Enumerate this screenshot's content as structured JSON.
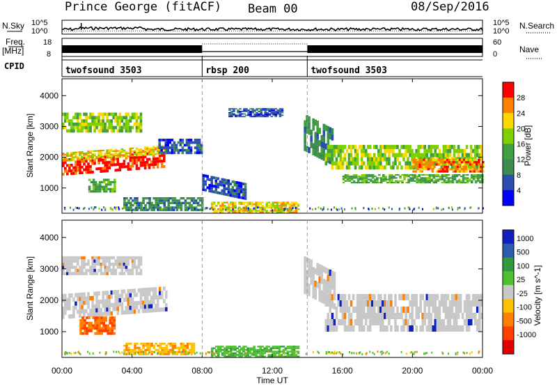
{
  "header": {
    "station": "Prince George (fitACF)",
    "beam": "Beam 00",
    "date": "08/Sep/2016"
  },
  "left_labels": {
    "nsky": "N.Sky",
    "freq_top": "Freq.",
    "freq_unit": "[MHz]",
    "cpid": "CPID"
  },
  "right_labels": {
    "nsearch": "N.Search",
    "nave": "Nave"
  },
  "noise_panel": {
    "left_ticks": [
      "10^5",
      "10^0"
    ],
    "right_ticks": [
      "10^5",
      "10^0"
    ]
  },
  "freq_panel": {
    "left_ticks": [
      "18",
      "8"
    ],
    "right_ticks": [
      "60",
      "0"
    ]
  },
  "cpid_segments": [
    {
      "name": "twofsound",
      "id": "3503",
      "start_hour": 0
    },
    {
      "name": "rbsp",
      "id": "200",
      "start_hour": 8
    },
    {
      "name": "twofsound",
      "id": "3503",
      "start_hour": 14
    }
  ],
  "colors": {
    "power": [
      "#0000ff",
      "#2a4fb0",
      "#3c8c50",
      "#40a040",
      "#80d000",
      "#ffd700",
      "#ff8000",
      "#ff0000"
    ],
    "velocity_pos": [
      "#1020c0",
      "#2a5cb0",
      "#2f9a40",
      "#50c030"
    ],
    "velocity_ground": "#c8c8c8",
    "velocity_neg": [
      "#ffc000",
      "#ff8000",
      "#ff4000",
      "#e00000"
    ]
  },
  "chart_data": [
    {
      "type": "heatmap",
      "name": "power",
      "ylabel": "Slant Range [km]",
      "yticks": [
        "4000",
        "3000",
        "2000",
        "1000"
      ],
      "ylim": [
        180,
        4550
      ],
      "xlim": [
        0,
        24
      ],
      "colorbar_label": "Power [dB]",
      "colorbar_ticks": [
        "28",
        "24",
        "20",
        "16",
        "12",
        "8",
        "4"
      ],
      "regions": [
        {
          "t0": 0.0,
          "t1": 5.8,
          "r0": 1400,
          "r1": 1950,
          "level": 7,
          "slope": 250
        },
        {
          "t0": 0.0,
          "t1": 6.0,
          "r0": 1850,
          "r1": 2150,
          "level": 5,
          "slope": 250
        },
        {
          "t0": 0.0,
          "t1": 4.5,
          "r0": 2800,
          "r1": 3450,
          "level": 4,
          "slope": 0
        },
        {
          "t0": 1.5,
          "t1": 3.0,
          "r0": 850,
          "r1": 1300,
          "level": 3,
          "slope": 0
        },
        {
          "t0": 3.5,
          "t1": 8.0,
          "r0": 250,
          "r1": 700,
          "level": 2,
          "slope": 0
        },
        {
          "t0": 5.5,
          "t1": 8.0,
          "r0": 2100,
          "r1": 2600,
          "level": 1,
          "slope": 0
        },
        {
          "t0": 8.0,
          "t1": 10.5,
          "r0": 900,
          "r1": 1450,
          "level": 1,
          "slope": -300
        },
        {
          "t0": 8.5,
          "t1": 13.5,
          "r0": 180,
          "r1": 500,
          "level": 5,
          "slope": 0
        },
        {
          "t0": 9.5,
          "t1": 12.5,
          "r0": 3300,
          "r1": 3550,
          "level": 1,
          "slope": 0
        },
        {
          "t0": 13.8,
          "t1": 15.5,
          "r0": 2200,
          "r1": 3400,
          "level": 2,
          "slope": -500
        },
        {
          "t0": 15.0,
          "t1": 24.0,
          "r0": 1600,
          "r1": 2400,
          "level": 4,
          "slope": 0
        },
        {
          "t0": 16.0,
          "t1": 24.0,
          "r0": 1150,
          "r1": 1450,
          "level": 3,
          "slope": 0
        },
        {
          "t0": 20.0,
          "t1": 24.0,
          "r0": 1500,
          "r1": 1950,
          "level": 6,
          "slope": 0
        }
      ]
    },
    {
      "type": "heatmap",
      "name": "velocity",
      "ylabel": "Slant Range [km]",
      "yticks": [
        "4000",
        "3000",
        "2000",
        "1000"
      ],
      "ylim": [
        180,
        4550
      ],
      "xlim": [
        0,
        24
      ],
      "xticks": [
        "00:00",
        "04:00",
        "08:00",
        "12:00",
        "16:00",
        "20:00",
        "00:00"
      ],
      "xlabel": "Time UT",
      "colorbar_label": "Velocity [m s^-1]",
      "colorbar_ticks": [
        "1000",
        "500",
        "100",
        "25",
        "-25",
        "-100",
        "-500",
        "-1000"
      ],
      "regions": [
        {
          "t0": 0.0,
          "t1": 6.0,
          "r0": 1400,
          "r1": 2200,
          "level": "ground",
          "slope": 250
        },
        {
          "t0": 0.0,
          "t1": 4.5,
          "r0": 2800,
          "r1": 3400,
          "level": "ground",
          "slope": 0
        },
        {
          "t0": 1.0,
          "t1": 3.0,
          "r0": 900,
          "r1": 1400,
          "level": "neg2",
          "slope": 0
        },
        {
          "t0": 3.5,
          "t1": 7.5,
          "r0": 250,
          "r1": 650,
          "level": "neg1",
          "slope": 0
        },
        {
          "t0": 8.5,
          "t1": 13.5,
          "r0": 180,
          "r1": 500,
          "level": "pos3",
          "slope": 0
        },
        {
          "t0": 13.8,
          "t1": 15.5,
          "r0": 2200,
          "r1": 3400,
          "level": "ground",
          "slope": -500
        },
        {
          "t0": 15.0,
          "t1": 24.0,
          "r0": 1000,
          "r1": 2200,
          "level": "ground",
          "slope": 0
        }
      ]
    }
  ]
}
